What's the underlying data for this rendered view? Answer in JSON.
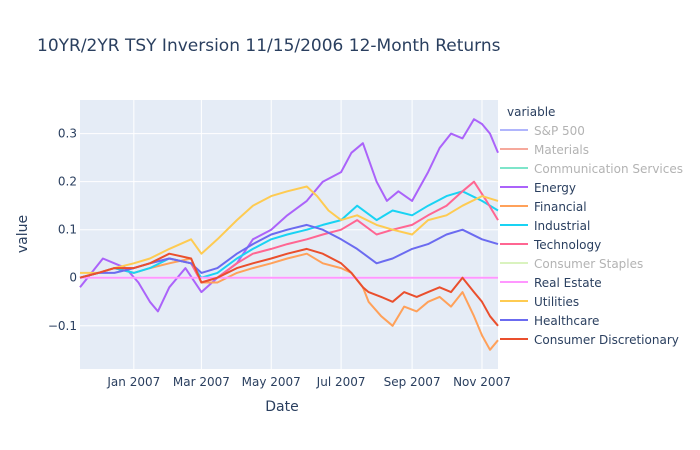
{
  "chart_data": {
    "type": "line",
    "title": "10YR/2YR TSY Inversion 11/15/2006 12-Month Returns",
    "xlabel": "Date",
    "ylabel": "value",
    "x_range": [
      "2006-11-15",
      "2007-11-15"
    ],
    "ylim": [
      -0.19,
      0.37
    ],
    "x_ticks": [
      {
        "date": "2007-01-01",
        "label": "Jan 2007"
      },
      {
        "date": "2007-03-01",
        "label": "Mar 2007"
      },
      {
        "date": "2007-05-01",
        "label": "May 2007"
      },
      {
        "date": "2007-07-01",
        "label": "Jul 2007"
      },
      {
        "date": "2007-09-01",
        "label": "Sep 2007"
      },
      {
        "date": "2007-11-01",
        "label": "Nov 2007"
      }
    ],
    "y_ticks": [
      {
        "value": -0.1,
        "label": "−0.1"
      },
      {
        "value": 0,
        "label": "0"
      },
      {
        "value": 0.1,
        "label": "0.1"
      },
      {
        "value": 0.2,
        "label": "0.2"
      },
      {
        "value": 0.3,
        "label": "0.3"
      }
    ],
    "grid": true,
    "background": "#e5ecf6",
    "legend": {
      "title": "variable",
      "position": "right"
    },
    "series": [
      {
        "name": "S&P 500",
        "color": "#636efa",
        "visible": false,
        "points": []
      },
      {
        "name": "Materials",
        "color": "#ef553b",
        "visible": false,
        "points": []
      },
      {
        "name": "Communication Services",
        "color": "#00cc96",
        "visible": false,
        "points": []
      },
      {
        "name": "Energy",
        "color": "#ab63fa",
        "visible": true,
        "points": [
          [
            "2006-11-15",
            -0.02
          ],
          [
            "2006-11-25",
            0.01
          ],
          [
            "2006-12-05",
            0.04
          ],
          [
            "2006-12-15",
            0.03
          ],
          [
            "2006-12-25",
            0.02
          ],
          [
            "2007-01-05",
            -0.01
          ],
          [
            "2007-01-15",
            -0.05
          ],
          [
            "2007-01-22",
            -0.07
          ],
          [
            "2007-02-01",
            -0.02
          ],
          [
            "2007-02-15",
            0.02
          ],
          [
            "2007-03-01",
            -0.03
          ],
          [
            "2007-03-15",
            0.0
          ],
          [
            "2007-04-01",
            0.03
          ],
          [
            "2007-04-15",
            0.08
          ],
          [
            "2007-05-01",
            0.1
          ],
          [
            "2007-05-15",
            0.13
          ],
          [
            "2007-06-01",
            0.16
          ],
          [
            "2007-06-15",
            0.2
          ],
          [
            "2007-07-01",
            0.22
          ],
          [
            "2007-07-10",
            0.26
          ],
          [
            "2007-07-20",
            0.28
          ],
          [
            "2007-08-01",
            0.2
          ],
          [
            "2007-08-10",
            0.16
          ],
          [
            "2007-08-20",
            0.18
          ],
          [
            "2007-09-01",
            0.16
          ],
          [
            "2007-09-15",
            0.22
          ],
          [
            "2007-09-25",
            0.27
          ],
          [
            "2007-10-05",
            0.3
          ],
          [
            "2007-10-15",
            0.29
          ],
          [
            "2007-10-25",
            0.33
          ],
          [
            "2007-11-01",
            0.32
          ],
          [
            "2007-11-08",
            0.3
          ],
          [
            "2007-11-15",
            0.26
          ]
        ]
      },
      {
        "name": "Financial",
        "color": "#ffa15a",
        "visible": true,
        "points": [
          [
            "2006-11-15",
            0.0
          ],
          [
            "2006-12-01",
            0.01
          ],
          [
            "2006-12-15",
            0.02
          ],
          [
            "2007-01-01",
            0.01
          ],
          [
            "2007-01-15",
            0.02
          ],
          [
            "2007-02-01",
            0.03
          ],
          [
            "2007-02-20",
            0.04
          ],
          [
            "2007-03-01",
            -0.01
          ],
          [
            "2007-03-15",
            -0.01
          ],
          [
            "2007-04-01",
            0.01
          ],
          [
            "2007-04-15",
            0.02
          ],
          [
            "2007-05-01",
            0.03
          ],
          [
            "2007-05-15",
            0.04
          ],
          [
            "2007-06-01",
            0.05
          ],
          [
            "2007-06-15",
            0.03
          ],
          [
            "2007-07-01",
            0.02
          ],
          [
            "2007-07-10",
            0.01
          ],
          [
            "2007-07-20",
            -0.02
          ],
          [
            "2007-07-25",
            -0.05
          ],
          [
            "2007-08-05",
            -0.08
          ],
          [
            "2007-08-15",
            -0.1
          ],
          [
            "2007-08-25",
            -0.06
          ],
          [
            "2007-09-05",
            -0.07
          ],
          [
            "2007-09-15",
            -0.05
          ],
          [
            "2007-09-25",
            -0.04
          ],
          [
            "2007-10-05",
            -0.06
          ],
          [
            "2007-10-15",
            -0.03
          ],
          [
            "2007-10-25",
            -0.08
          ],
          [
            "2007-11-01",
            -0.12
          ],
          [
            "2007-11-08",
            -0.15
          ],
          [
            "2007-11-15",
            -0.13
          ]
        ]
      },
      {
        "name": "Industrial",
        "color": "#19d3f3",
        "visible": true,
        "points": [
          [
            "2006-11-15",
            0.0
          ],
          [
            "2006-12-01",
            0.01
          ],
          [
            "2006-12-15",
            0.02
          ],
          [
            "2007-01-01",
            0.01
          ],
          [
            "2007-01-15",
            0.02
          ],
          [
            "2007-02-01",
            0.04
          ],
          [
            "2007-02-20",
            0.03
          ],
          [
            "2007-03-01",
            0.0
          ],
          [
            "2007-03-15",
            0.01
          ],
          [
            "2007-04-01",
            0.04
          ],
          [
            "2007-04-15",
            0.06
          ],
          [
            "2007-05-01",
            0.08
          ],
          [
            "2007-05-15",
            0.09
          ],
          [
            "2007-06-01",
            0.1
          ],
          [
            "2007-06-15",
            0.11
          ],
          [
            "2007-07-01",
            0.12
          ],
          [
            "2007-07-15",
            0.15
          ],
          [
            "2007-08-01",
            0.12
          ],
          [
            "2007-08-15",
            0.14
          ],
          [
            "2007-09-01",
            0.13
          ],
          [
            "2007-09-15",
            0.15
          ],
          [
            "2007-10-01",
            0.17
          ],
          [
            "2007-10-15",
            0.18
          ],
          [
            "2007-11-01",
            0.16
          ],
          [
            "2007-11-15",
            0.14
          ]
        ]
      },
      {
        "name": "Technology",
        "color": "#ff6692",
        "visible": true,
        "points": [
          [
            "2006-11-15",
            0.0
          ],
          [
            "2006-12-01",
            0.01
          ],
          [
            "2006-12-15",
            0.02
          ],
          [
            "2007-01-01",
            0.02
          ],
          [
            "2007-01-15",
            0.03
          ],
          [
            "2007-02-01",
            0.04
          ],
          [
            "2007-02-20",
            0.03
          ],
          [
            "2007-03-01",
            -0.01
          ],
          [
            "2007-03-15",
            0.0
          ],
          [
            "2007-04-01",
            0.03
          ],
          [
            "2007-04-15",
            0.05
          ],
          [
            "2007-05-01",
            0.06
          ],
          [
            "2007-05-15",
            0.07
          ],
          [
            "2007-06-01",
            0.08
          ],
          [
            "2007-06-15",
            0.09
          ],
          [
            "2007-07-01",
            0.1
          ],
          [
            "2007-07-15",
            0.12
          ],
          [
            "2007-08-01",
            0.09
          ],
          [
            "2007-08-15",
            0.1
          ],
          [
            "2007-09-01",
            0.11
          ],
          [
            "2007-09-15",
            0.13
          ],
          [
            "2007-10-01",
            0.15
          ],
          [
            "2007-10-15",
            0.18
          ],
          [
            "2007-10-25",
            0.2
          ],
          [
            "2007-11-05",
            0.16
          ],
          [
            "2007-11-15",
            0.12
          ]
        ]
      },
      {
        "name": "Consumer Staples",
        "color": "#b6e880",
        "visible": false,
        "points": []
      },
      {
        "name": "Real Estate",
        "color": "#ff97ff",
        "visible": true,
        "points": [
          [
            "2006-11-15",
            0.0
          ],
          [
            "2007-11-15",
            0.0
          ]
        ]
      },
      {
        "name": "Utilities",
        "color": "#fecb52",
        "visible": true,
        "points": [
          [
            "2006-11-15",
            0.01
          ],
          [
            "2006-12-01",
            0.01
          ],
          [
            "2006-12-15",
            0.02
          ],
          [
            "2007-01-01",
            0.03
          ],
          [
            "2007-01-15",
            0.04
          ],
          [
            "2007-02-01",
            0.06
          ],
          [
            "2007-02-20",
            0.08
          ],
          [
            "2007-03-01",
            0.05
          ],
          [
            "2007-03-15",
            0.08
          ],
          [
            "2007-04-01",
            0.12
          ],
          [
            "2007-04-15",
            0.15
          ],
          [
            "2007-05-01",
            0.17
          ],
          [
            "2007-05-15",
            0.18
          ],
          [
            "2007-06-01",
            0.19
          ],
          [
            "2007-06-10",
            0.17
          ],
          [
            "2007-06-20",
            0.14
          ],
          [
            "2007-07-01",
            0.12
          ],
          [
            "2007-07-15",
            0.13
          ],
          [
            "2007-08-01",
            0.11
          ],
          [
            "2007-08-15",
            0.1
          ],
          [
            "2007-09-01",
            0.09
          ],
          [
            "2007-09-15",
            0.12
          ],
          [
            "2007-10-01",
            0.13
          ],
          [
            "2007-10-15",
            0.15
          ],
          [
            "2007-11-01",
            0.17
          ],
          [
            "2007-11-15",
            0.16
          ]
        ]
      },
      {
        "name": "Healthcare",
        "color": "#6b6bf0",
        "visible": true,
        "points": [
          [
            "2006-11-15",
            0.0
          ],
          [
            "2006-12-01",
            0.01
          ],
          [
            "2006-12-15",
            0.01
          ],
          [
            "2007-01-01",
            0.02
          ],
          [
            "2007-01-15",
            0.03
          ],
          [
            "2007-02-01",
            0.04
          ],
          [
            "2007-02-20",
            0.03
          ],
          [
            "2007-03-01",
            0.01
          ],
          [
            "2007-03-15",
            0.02
          ],
          [
            "2007-04-01",
            0.05
          ],
          [
            "2007-04-15",
            0.07
          ],
          [
            "2007-05-01",
            0.09
          ],
          [
            "2007-05-15",
            0.1
          ],
          [
            "2007-06-01",
            0.11
          ],
          [
            "2007-06-15",
            0.1
          ],
          [
            "2007-07-01",
            0.08
          ],
          [
            "2007-07-15",
            0.06
          ],
          [
            "2007-08-01",
            0.03
          ],
          [
            "2007-08-15",
            0.04
          ],
          [
            "2007-09-01",
            0.06
          ],
          [
            "2007-09-15",
            0.07
          ],
          [
            "2007-10-01",
            0.09
          ],
          [
            "2007-10-15",
            0.1
          ],
          [
            "2007-11-01",
            0.08
          ],
          [
            "2007-11-15",
            0.07
          ]
        ]
      },
      {
        "name": "Consumer Discretionary",
        "color": "#ea4f2d",
        "visible": true,
        "points": [
          [
            "2006-11-15",
            0.0
          ],
          [
            "2006-12-01",
            0.01
          ],
          [
            "2006-12-15",
            0.02
          ],
          [
            "2007-01-01",
            0.02
          ],
          [
            "2007-01-15",
            0.03
          ],
          [
            "2007-02-01",
            0.05
          ],
          [
            "2007-02-20",
            0.04
          ],
          [
            "2007-03-01",
            -0.01
          ],
          [
            "2007-03-15",
            0.0
          ],
          [
            "2007-04-01",
            0.02
          ],
          [
            "2007-04-15",
            0.03
          ],
          [
            "2007-05-01",
            0.04
          ],
          [
            "2007-05-15",
            0.05
          ],
          [
            "2007-06-01",
            0.06
          ],
          [
            "2007-06-15",
            0.05
          ],
          [
            "2007-07-01",
            0.03
          ],
          [
            "2007-07-10",
            0.01
          ],
          [
            "2007-07-20",
            -0.02
          ],
          [
            "2007-07-25",
            -0.03
          ],
          [
            "2007-08-05",
            -0.04
          ],
          [
            "2007-08-15",
            -0.05
          ],
          [
            "2007-08-25",
            -0.03
          ],
          [
            "2007-09-05",
            -0.04
          ],
          [
            "2007-09-15",
            -0.03
          ],
          [
            "2007-09-25",
            -0.02
          ],
          [
            "2007-10-05",
            -0.03
          ],
          [
            "2007-10-15",
            0.0
          ],
          [
            "2007-10-25",
            -0.03
          ],
          [
            "2007-11-01",
            -0.05
          ],
          [
            "2007-11-08",
            -0.08
          ],
          [
            "2007-11-15",
            -0.1
          ]
        ]
      }
    ]
  }
}
